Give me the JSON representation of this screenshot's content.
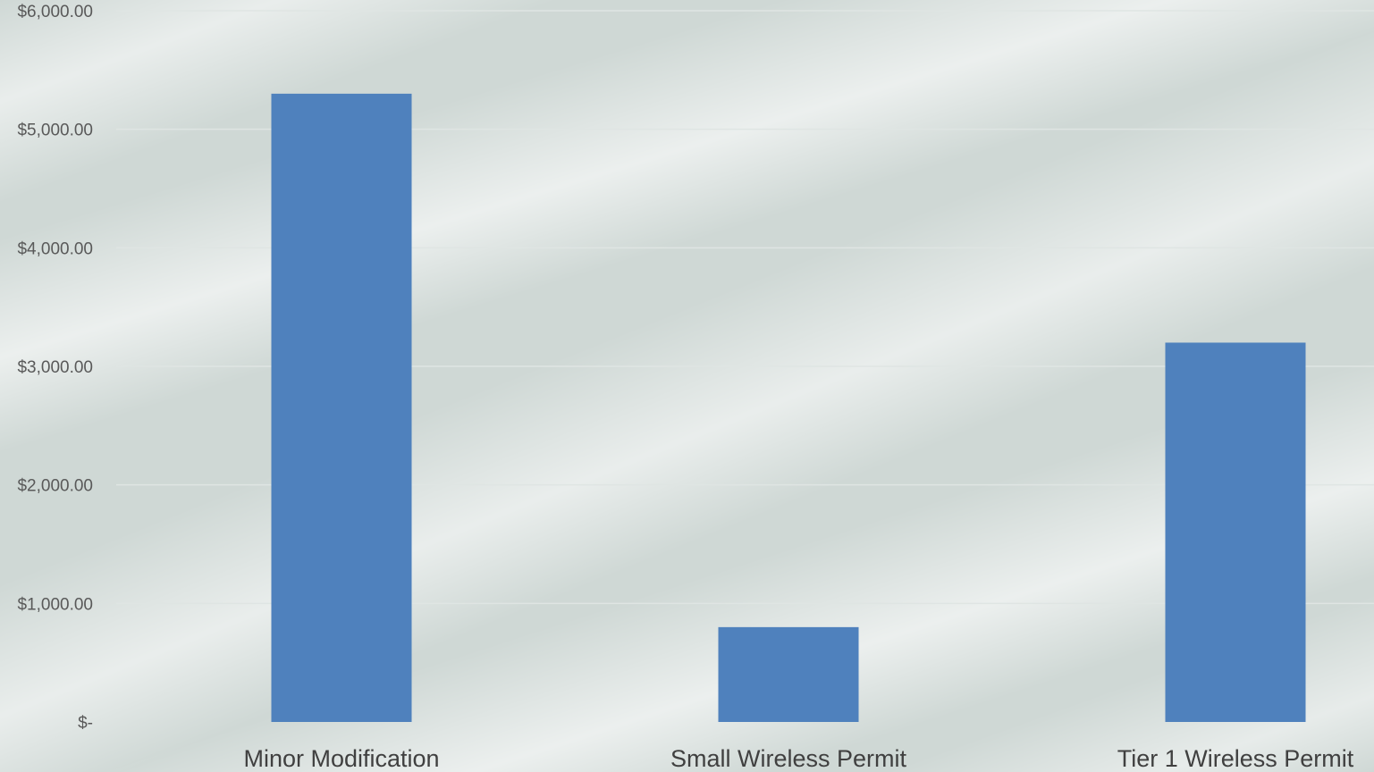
{
  "chart_data": {
    "type": "bar",
    "title": "",
    "xlabel": "",
    "ylabel": "",
    "categories": [
      "Minor Modification",
      "Small Wireless Permit",
      "Tier 1 Wireless Permit"
    ],
    "values": [
      5300,
      800,
      3200
    ],
    "ylim": [
      0,
      6000
    ],
    "y_ticks": [
      0,
      1000,
      2000,
      3000,
      4000,
      5000,
      6000
    ],
    "y_tick_labels": [
      "$-",
      "$1,000.00",
      "$2,000.00",
      "$3,000.00",
      "$4,000.00",
      "$5,000.00",
      "$6,000.00"
    ],
    "grid": true,
    "legend": "none",
    "bar_color": "#4f81bd"
  }
}
